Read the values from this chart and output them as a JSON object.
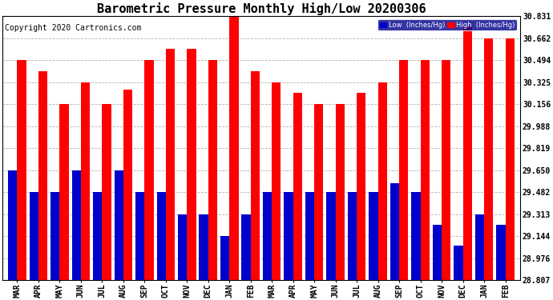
{
  "title": "Barometric Pressure Monthly High/Low 20200306",
  "copyright": "Copyright 2020 Cartronics.com",
  "months": [
    "MAR",
    "APR",
    "MAY",
    "JUN",
    "JUL",
    "AUG",
    "SEP",
    "OCT",
    "NOV",
    "DEC",
    "JAN",
    "FEB",
    "MAR",
    "APR",
    "MAY",
    "JUN",
    "JUL",
    "AUG",
    "SEP",
    "OCT",
    "NOV",
    "DEC",
    "JAN",
    "FEB"
  ],
  "high_values": [
    30.494,
    30.41,
    30.156,
    30.325,
    30.156,
    30.27,
    30.494,
    30.578,
    30.578,
    30.494,
    30.831,
    30.41,
    30.325,
    30.24,
    30.156,
    30.156,
    30.24,
    30.325,
    30.494,
    30.494,
    30.494,
    30.75,
    30.662,
    30.662
  ],
  "low_values": [
    29.65,
    29.482,
    29.482,
    29.65,
    29.482,
    29.65,
    29.482,
    29.482,
    29.313,
    29.313,
    29.144,
    29.313,
    29.482,
    29.482,
    29.482,
    29.482,
    29.482,
    29.482,
    29.55,
    29.482,
    29.23,
    29.07,
    29.313,
    29.23
  ],
  "bar_color_high": "#ff0000",
  "bar_color_low": "#0000cc",
  "background_color": "#ffffff",
  "plot_bg_color": "#ffffff",
  "grid_color": "#aaaaaa",
  "ylim_min": 28.807,
  "ylim_max": 30.831,
  "yticks": [
    28.807,
    28.976,
    29.144,
    29.313,
    29.482,
    29.65,
    29.819,
    29.988,
    30.156,
    30.325,
    30.494,
    30.662,
    30.831
  ],
  "title_fontsize": 11,
  "copyright_fontsize": 7,
  "tick_fontsize": 7,
  "legend_label_low": "Low  (Inches/Hg)",
  "legend_label_high": "High  (Inches/Hg)"
}
